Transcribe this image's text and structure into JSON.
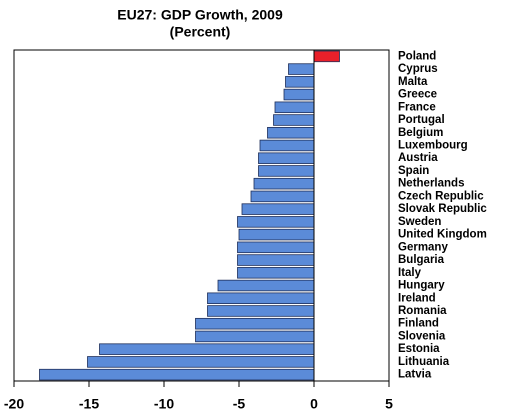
{
  "chart_data": {
    "type": "hbar",
    "title": "EU27: GDP Growth, 2009",
    "subtitle": "(Percent)",
    "categories": [
      "Poland",
      "Cyprus",
      "Malta",
      "Greece",
      "France",
      "Portugal",
      "Belgium",
      "Luxembourg",
      "Austria",
      "Spain",
      "Netherlands",
      "Czech Republic",
      "Slovak Republic",
      "Sweden",
      "United Kingdom",
      "Germany",
      "Bulgaria",
      "Italy",
      "Hungary",
      "Ireland",
      "Romania",
      "Finland",
      "Slovenia",
      "Estonia",
      "Lithuania",
      "Latvia"
    ],
    "values": [
      1.7,
      -1.7,
      -1.9,
      -2.0,
      -2.6,
      -2.7,
      -3.1,
      -3.6,
      -3.7,
      -3.7,
      -4.0,
      -4.2,
      -4.8,
      -5.1,
      -5.0,
      -5.1,
      -5.1,
      -5.1,
      -6.4,
      -7.1,
      -7.1,
      -7.9,
      -7.9,
      -14.3,
      -15.1,
      -18.3
    ],
    "colors": [
      "#e8202a",
      "#5b8bd8",
      "#5b8bd8",
      "#5b8bd8",
      "#5b8bd8",
      "#5b8bd8",
      "#5b8bd8",
      "#5b8bd8",
      "#5b8bd8",
      "#5b8bd8",
      "#5b8bd8",
      "#5b8bd8",
      "#5b8bd8",
      "#5b8bd8",
      "#5b8bd8",
      "#5b8bd8",
      "#5b8bd8",
      "#5b8bd8",
      "#5b8bd8",
      "#5b8bd8",
      "#5b8bd8",
      "#5b8bd8",
      "#5b8bd8",
      "#5b8bd8",
      "#5b8bd8",
      "#5b8bd8"
    ],
    "xlim": [
      -20,
      5
    ],
    "xticks": [
      -20,
      -15,
      -10,
      -5,
      0,
      5
    ],
    "grid": false
  }
}
